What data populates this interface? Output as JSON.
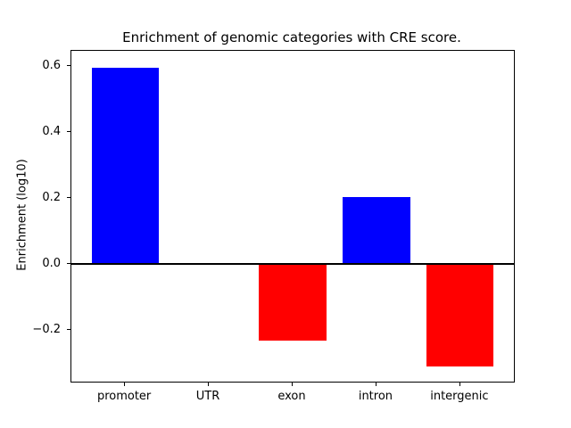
{
  "chart_data": {
    "type": "bar",
    "title": "Enrichment of genomic categories with CRE score.",
    "xlabel": "",
    "ylabel": "Enrichment (log10)",
    "categories": [
      "promoter",
      "UTR",
      "exon",
      "intron",
      "intergenic"
    ],
    "values": [
      0.595,
      0.0,
      -0.233,
      0.202,
      -0.311
    ],
    "bar_colors": [
      "#0000ff",
      "#0000ff",
      "#ff0000",
      "#0000ff",
      "#ff0000"
    ],
    "positive_color": "#0000ff",
    "negative_color": "#ff0000",
    "yticks": [
      0.6,
      0.4,
      0.2,
      0.0,
      -0.2
    ],
    "ytick_labels": [
      "0.6",
      "0.4",
      "0.2",
      "0.0",
      "−0.2"
    ],
    "ylim": [
      -0.356,
      0.646
    ],
    "xlim": [
      -0.64,
      4.64
    ],
    "bar_width": 0.8,
    "zero_line": true,
    "grid": false,
    "legend": null,
    "background_color": "#ffffff",
    "axis_color": "#000000"
  }
}
